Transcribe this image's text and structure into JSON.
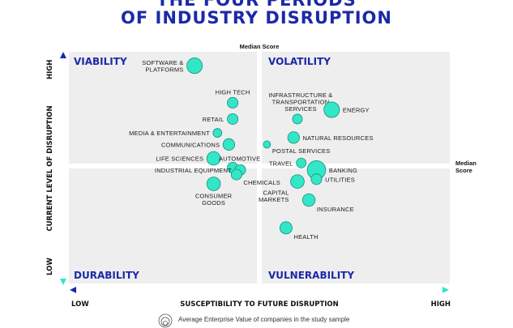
{
  "title_lines": [
    "THE FOUR PERIODS",
    "OF INDUSTRY DISRUPTION"
  ],
  "chart_data": {
    "type": "scatter",
    "x_axis": {
      "title": "SUSCEPTIBILITY TO FUTURE DISRUPTION",
      "low_label": "LOW",
      "high_label": "HIGH",
      "range": [
        0,
        1
      ]
    },
    "y_axis": {
      "title": "CURRENT LEVEL OF DISRUPTION",
      "low_label": "LOW",
      "high_label": "HIGH",
      "range": [
        0,
        1
      ]
    },
    "median_x_label": "Median Score",
    "median_y_label": [
      "Median",
      "Score"
    ],
    "median": {
      "x": 0.5,
      "y": 0.5
    },
    "quadrants": [
      {
        "name": "VIABILITY",
        "position": "top-left"
      },
      {
        "name": "VOLATILITY",
        "position": "top-right"
      },
      {
        "name": "DURABILITY",
        "position": "bottom-left"
      },
      {
        "name": "VULNERABILITY",
        "position": "bottom-right"
      }
    ],
    "points": [
      {
        "label": [
          "SOFTWARE &",
          "PLATFORMS"
        ],
        "x": 0.33,
        "y": 0.94,
        "size": 0.55,
        "anchor": "left"
      },
      {
        "label": [
          "HIGH TECH"
        ],
        "x": 0.43,
        "y": 0.78,
        "size": 0.3,
        "anchor": "above"
      },
      {
        "label": [
          "RETAIL"
        ],
        "x": 0.43,
        "y": 0.71,
        "size": 0.3,
        "anchor": "left"
      },
      {
        "label": [
          "MEDIA & ENTERTAINMENT"
        ],
        "x": 0.39,
        "y": 0.65,
        "size": 0.2,
        "anchor": "left"
      },
      {
        "label": [
          "COMMUNICATIONS"
        ],
        "x": 0.42,
        "y": 0.6,
        "size": 0.35,
        "anchor": "left"
      },
      {
        "label": [
          "LIFE SCIENCES"
        ],
        "x": 0.38,
        "y": 0.54,
        "size": 0.45,
        "anchor": "left"
      },
      {
        "label": [
          "AUTOMOTIVE"
        ],
        "x": 0.43,
        "y": 0.5,
        "size": 0.3,
        "anchor": "above-right"
      },
      {
        "label": [
          "INDUSTRIAL EQUIPMENT"
        ],
        "x": 0.45,
        "y": 0.49,
        "size": 0.3,
        "anchor": "left"
      },
      {
        "label": [
          "CHEMICALS"
        ],
        "x": 0.44,
        "y": 0.47,
        "size": 0.3,
        "anchor": "below-right"
      },
      {
        "label": [
          "CONSUMER",
          "GOODS"
        ],
        "x": 0.38,
        "y": 0.43,
        "size": 0.45,
        "anchor": "below"
      },
      {
        "label": [
          "INFRASTRUCTURE &",
          "TRANSPORTATION",
          "SERVICES"
        ],
        "x": 0.6,
        "y": 0.71,
        "size": 0.25,
        "anchor": "above-left"
      },
      {
        "label": [
          "ENERGY"
        ],
        "x": 0.69,
        "y": 0.75,
        "size": 0.55,
        "anchor": "right"
      },
      {
        "label": [
          "NATURAL RESOURCES"
        ],
        "x": 0.59,
        "y": 0.63,
        "size": 0.35,
        "anchor": "right"
      },
      {
        "label": [
          "POSTAL SERVICES"
        ],
        "x": 0.52,
        "y": 0.6,
        "size": 0.12,
        "anchor": "below-right"
      },
      {
        "label": [
          "TRAVEL"
        ],
        "x": 0.61,
        "y": 0.52,
        "size": 0.25,
        "anchor": "left"
      },
      {
        "label": [
          "BANKING"
        ],
        "x": 0.65,
        "y": 0.49,
        "size": 0.7,
        "anchor": "right"
      },
      {
        "label": [
          "UTILITIES"
        ],
        "x": 0.65,
        "y": 0.45,
        "size": 0.3,
        "anchor": "right"
      },
      {
        "label": [
          "CAPITAL",
          "MARKETS"
        ],
        "x": 0.6,
        "y": 0.44,
        "size": 0.45,
        "anchor": "below-left"
      },
      {
        "label": [
          "INSURANCE"
        ],
        "x": 0.63,
        "y": 0.36,
        "size": 0.4,
        "anchor": "below-right"
      },
      {
        "label": [
          "HEALTH"
        ],
        "x": 0.57,
        "y": 0.24,
        "size": 0.38,
        "anchor": "below-right"
      }
    ],
    "legend_note": "Average Enterprise Value of companies in the study sample",
    "colors": {
      "bubble": "#33e6c7",
      "bubble_stroke": "#16907d",
      "quadrant_title": "#1b2aa6",
      "plot_bg": "#eeeeee",
      "arrow_low": "#1b2aa6",
      "arrow_high": "#33e6c7"
    }
  }
}
